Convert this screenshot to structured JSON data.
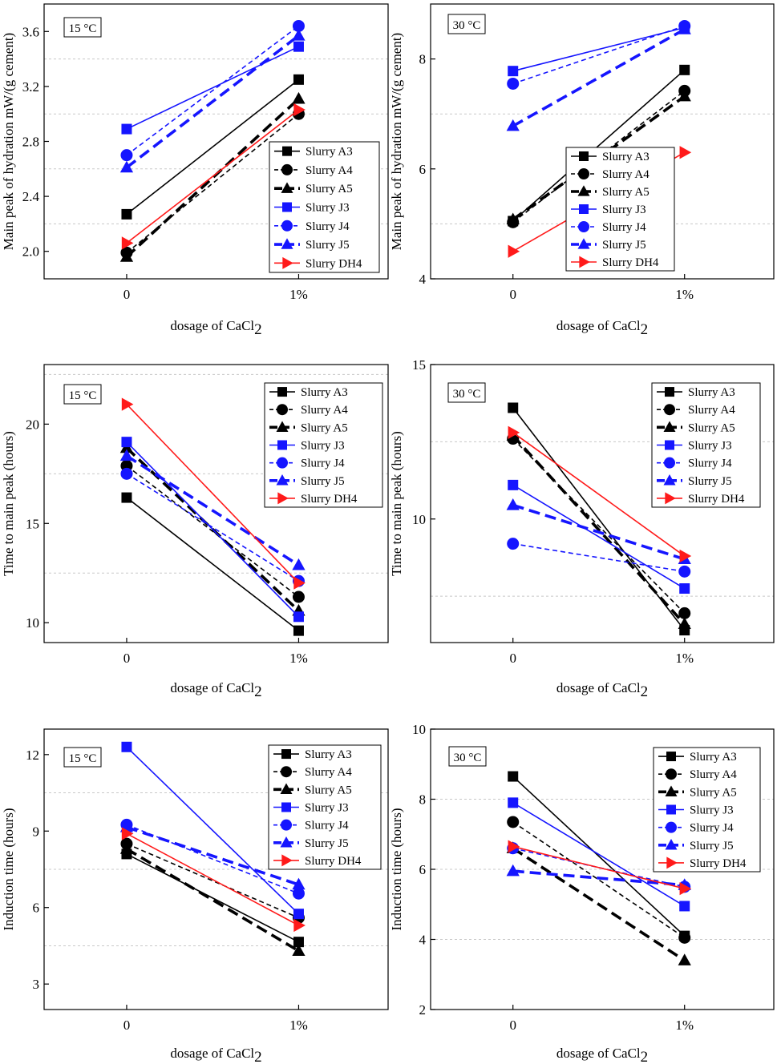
{
  "figure": {
    "series_style": [
      {
        "name": "Slurry A3",
        "color": "#000000",
        "marker": "square",
        "dash": "solid",
        "weight": "normal"
      },
      {
        "name": "Slurry A4",
        "color": "#000000",
        "marker": "circle",
        "dash": "short",
        "weight": "normal"
      },
      {
        "name": "Slurry A5",
        "color": "#000000",
        "marker": "triangle",
        "dash": "long",
        "weight": "bold"
      },
      {
        "name": "Slurry J3",
        "color": "#1515ff",
        "marker": "square",
        "dash": "solid",
        "weight": "normal"
      },
      {
        "name": "Slurry J4",
        "color": "#1515ff",
        "marker": "circle",
        "dash": "short",
        "weight": "normal"
      },
      {
        "name": "Slurry J5",
        "color": "#1515ff",
        "marker": "triangle",
        "dash": "long",
        "weight": "bold"
      },
      {
        "name": "Slurry DH4",
        "color": "#ff1a1a",
        "marker": "triangle-right",
        "dash": "solid",
        "weight": "normal"
      }
    ]
  },
  "chart_data": [
    {
      "type": "line",
      "panel": "top-left",
      "temperature_label": "15 °C",
      "categories": [
        "0",
        "1%"
      ],
      "xlabel_main": "dosage of CaCl",
      "xlabel_sub": "2",
      "ylabel": "Main peak of hydration mW/(g cement)",
      "ylim": [
        1.8,
        3.8
      ],
      "yticks": [
        2.0,
        2.4,
        2.8,
        3.2,
        3.6
      ],
      "ytick_labels": [
        "2.0",
        "2.4",
        "2.8",
        "3.2",
        "3.6"
      ],
      "gridlines": [
        2.2,
        2.6,
        3.0,
        3.4
      ],
      "legend_position": "bottom-right",
      "series": [
        {
          "name": "Slurry A3",
          "values": [
            2.27,
            3.25
          ]
        },
        {
          "name": "Slurry A4",
          "values": [
            1.99,
            3.0
          ]
        },
        {
          "name": "Slurry A5",
          "values": [
            1.96,
            3.11
          ]
        },
        {
          "name": "Slurry J3",
          "values": [
            2.89,
            3.49
          ]
        },
        {
          "name": "Slurry J4",
          "values": [
            2.7,
            3.64
          ]
        },
        {
          "name": "Slurry J5",
          "values": [
            2.61,
            3.57
          ]
        },
        {
          "name": "Slurry DH4",
          "values": [
            2.06,
            3.03
          ]
        }
      ]
    },
    {
      "type": "line",
      "panel": "top-right",
      "temperature_label": "30 °C",
      "categories": [
        "0",
        "1%"
      ],
      "xlabel_main": "dosage of CaCl",
      "xlabel_sub": "2",
      "ylabel": "Main peak of hydration mW/(g cement)",
      "ylim": [
        4,
        9
      ],
      "yticks": [
        4,
        6,
        8
      ],
      "ytick_labels": [
        "4",
        "6",
        "8"
      ],
      "gridlines": [
        5,
        7
      ],
      "legend_position": "bottom-right",
      "series": [
        {
          "name": "Slurry A3",
          "values": [
            5.05,
            7.8
          ]
        },
        {
          "name": "Slurry A4",
          "values": [
            5.03,
            7.42
          ]
        },
        {
          "name": "Slurry A5",
          "values": [
            5.08,
            7.32
          ]
        },
        {
          "name": "Slurry J3",
          "values": [
            7.78,
            8.57
          ]
        },
        {
          "name": "Slurry J4",
          "values": [
            7.55,
            8.6
          ]
        },
        {
          "name": "Slurry J5",
          "values": [
            6.78,
            8.54
          ]
        },
        {
          "name": "Slurry DH4",
          "values": [
            4.5,
            6.3
          ]
        }
      ]
    },
    {
      "type": "line",
      "panel": "middle-left",
      "temperature_label": "15 °C",
      "categories": [
        "0",
        "1%"
      ],
      "xlabel_main": "dosage of CaCl",
      "xlabel_sub": "2",
      "ylabel": "Time to main peak (hours)",
      "ylim": [
        9,
        23
      ],
      "yticks": [
        10,
        15,
        20
      ],
      "ytick_labels": [
        "10",
        "15",
        "20"
      ],
      "gridlines": [
        12.5,
        17.5,
        22.5
      ],
      "legend_position": "top-right",
      "series": [
        {
          "name": "Slurry A3",
          "values": [
            16.3,
            9.6
          ]
        },
        {
          "name": "Slurry A4",
          "values": [
            17.9,
            11.3
          ]
        },
        {
          "name": "Slurry A5",
          "values": [
            18.8,
            10.6
          ]
        },
        {
          "name": "Slurry J3",
          "values": [
            19.1,
            10.3
          ]
        },
        {
          "name": "Slurry J4",
          "values": [
            17.5,
            12.1
          ]
        },
        {
          "name": "Slurry J5",
          "values": [
            18.4,
            12.9
          ]
        },
        {
          "name": "Slurry DH4",
          "values": [
            21.0,
            12.0
          ]
        }
      ]
    },
    {
      "type": "line",
      "panel": "middle-right",
      "temperature_label": "30 °C",
      "categories": [
        "0",
        "1%"
      ],
      "xlabel_main": "dosage of CaCl",
      "xlabel_sub": "2",
      "ylabel": "Time to main peak (hours)",
      "ylim": [
        6,
        15
      ],
      "yticks": [
        10,
        15
      ],
      "ytick_labels": [
        "10",
        "15"
      ],
      "gridlines": [
        7.5,
        12.5
      ],
      "legend_position": "top-right",
      "series": [
        {
          "name": "Slurry A3",
          "values": [
            13.6,
            6.4
          ]
        },
        {
          "name": "Slurry A4",
          "values": [
            12.6,
            6.95
          ]
        },
        {
          "name": "Slurry A5",
          "values": [
            12.7,
            6.6
          ]
        },
        {
          "name": "Slurry J3",
          "values": [
            11.1,
            7.75
          ]
        },
        {
          "name": "Slurry J4",
          "values": [
            9.2,
            8.3
          ]
        },
        {
          "name": "Slurry J5",
          "values": [
            10.45,
            8.7
          ]
        },
        {
          "name": "Slurry DH4",
          "values": [
            12.8,
            8.8
          ]
        }
      ]
    },
    {
      "type": "line",
      "panel": "bottom-left",
      "temperature_label": "15 °C",
      "categories": [
        "0",
        "1%"
      ],
      "xlabel_main": "dosage of CaCl",
      "xlabel_sub": "2",
      "ylabel": "Induction time (hours)",
      "ylim": [
        2,
        13
      ],
      "yticks": [
        3,
        6,
        9,
        12
      ],
      "ytick_labels": [
        "3",
        "6",
        "9",
        "12"
      ],
      "gridlines": [
        4.5,
        7.5,
        10.5
      ],
      "legend_position": "top-right",
      "series": [
        {
          "name": "Slurry A3",
          "values": [
            8.1,
            4.65
          ]
        },
        {
          "name": "Slurry A4",
          "values": [
            8.5,
            5.6
          ]
        },
        {
          "name": "Slurry A5",
          "values": [
            8.3,
            4.3
          ]
        },
        {
          "name": "Slurry J3",
          "values": [
            12.3,
            5.75
          ]
        },
        {
          "name": "Slurry J4",
          "values": [
            9.25,
            6.55
          ]
        },
        {
          "name": "Slurry J5",
          "values": [
            9.15,
            6.9
          ]
        },
        {
          "name": "Slurry DH4",
          "values": [
            8.9,
            5.3
          ]
        }
      ]
    },
    {
      "type": "line",
      "panel": "bottom-right",
      "temperature_label": "30 °C",
      "categories": [
        "0",
        "1%"
      ],
      "xlabel_main": "dosage of CaCl",
      "xlabel_sub": "2",
      "ylabel": "Induction time (hours)",
      "ylim": [
        2,
        10
      ],
      "yticks": [
        2,
        4,
        6,
        8,
        10
      ],
      "ytick_labels": [
        "2",
        "4",
        "6",
        "8",
        "10"
      ],
      "gridlines": [
        4,
        6,
        8
      ],
      "legend_position": "top-right",
      "series": [
        {
          "name": "Slurry A3",
          "values": [
            8.65,
            4.1
          ]
        },
        {
          "name": "Slurry A4",
          "values": [
            7.35,
            4.05
          ]
        },
        {
          "name": "Slurry A5",
          "values": [
            6.6,
            3.4
          ]
        },
        {
          "name": "Slurry J3",
          "values": [
            7.9,
            4.95
          ]
        },
        {
          "name": "Slurry J4",
          "values": [
            6.6,
            5.5
          ]
        },
        {
          "name": "Slurry J5",
          "values": [
            5.95,
            5.55
          ]
        },
        {
          "name": "Slurry DH4",
          "values": [
            6.65,
            5.45
          ]
        }
      ]
    }
  ]
}
